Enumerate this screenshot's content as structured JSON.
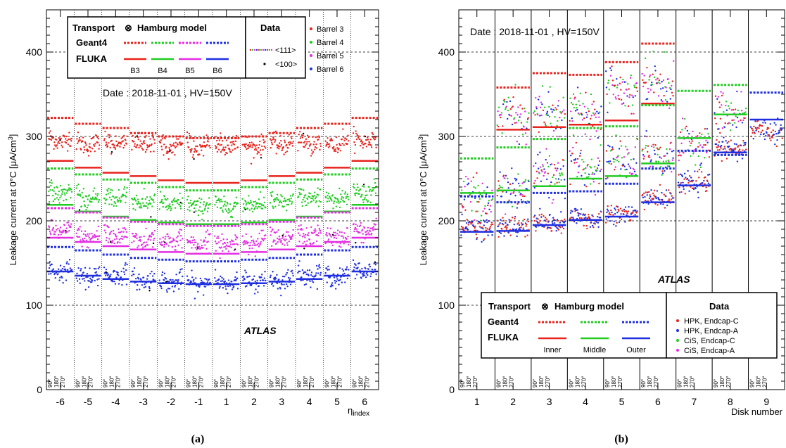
{
  "colors": {
    "barrel3": "#e8231d",
    "barrel4": "#22cc22",
    "barrel5": "#e32ee3",
    "barrel6": "#1f2fe0",
    "hpk_c": "#e8231d",
    "hpk_a": "#1f2fe0",
    "cis_c": "#22cc22",
    "cis_a": "#e32ee3"
  },
  "chart_data": [
    {
      "type": "scatter",
      "panel_label": "(a)",
      "ylabel": "Leakage current at 0°C [μA/cm³]",
      "ylabel_parts": [
        "Leakage current at 0°C [μA/cm",
        "3",
        "]"
      ],
      "xlabel": "η",
      "xlabel_sub": "index",
      "ylim": [
        0,
        450
      ],
      "yticks": [
        0,
        100,
        200,
        300,
        400
      ],
      "yticks_text": [
        "0",
        "100",
        "200",
        "300",
        "400"
      ],
      "grid": "dashed horizontal at 100, 200, 300, 400; dotted vertical bin separators",
      "categories": [
        "-6",
        "-5",
        "-4",
        "-3",
        "-2",
        "-1",
        "1",
        "2",
        "3",
        "4",
        "5",
        "6"
      ],
      "phi_labels": [
        "90°",
        "180°",
        "270°"
      ],
      "date_text": "Date : 2018-11-01 ,  HV=150V",
      "atlas_text": "ATLAS",
      "legend": {
        "title_transport": "Transport",
        "otimes": "⊗",
        "title_model": "Hamburg model",
        "row_geant4": "Geant4",
        "row_fluka": "FLUKA",
        "cols": [
          "B3",
          "B4",
          "B5",
          "B6"
        ],
        "data_title": "Data",
        "marker_111": "<111>",
        "marker_100": "<100>",
        "series_labels": [
          "Barrel 3",
          "Barrel 4",
          "Barrel 5",
          "Barrel 6"
        ]
      },
      "series": [
        {
          "name": "Barrel 3",
          "data_mean": [
            296,
            291,
            293,
            291,
            289,
            288,
            288,
            289,
            291,
            293,
            291,
            296
          ],
          "geant4": [
            322,
            315,
            310,
            304,
            300,
            298,
            298,
            300,
            304,
            310,
            315,
            322
          ],
          "fluka": [
            271,
            263,
            257,
            253,
            248,
            245,
            245,
            248,
            253,
            257,
            263,
            271
          ]
        },
        {
          "name": "Barrel 4",
          "data_mean": [
            234,
            226,
            228,
            223,
            220,
            218,
            218,
            220,
            223,
            228,
            226,
            234
          ],
          "geant4": [
            262,
            255,
            249,
            245,
            240,
            236,
            236,
            240,
            245,
            249,
            255,
            262
          ],
          "fluka": [
            219,
            211,
            205,
            201,
            198,
            196,
            196,
            198,
            201,
            205,
            211,
            219
          ]
        },
        {
          "name": "Barrel 5",
          "data_mean": [
            188,
            181,
            183,
            178,
            176,
            174,
            174,
            176,
            178,
            183,
            181,
            188
          ],
          "geant4": [
            215,
            210,
            204,
            199,
            196,
            194,
            194,
            196,
            199,
            204,
            210,
            215
          ],
          "fluka": [
            180,
            175,
            170,
            166,
            163,
            161,
            161,
            163,
            166,
            170,
            175,
            180
          ]
        },
        {
          "name": "Barrel 6",
          "data_mean": [
            141,
            134,
            136,
            130,
            128,
            126,
            126,
            128,
            130,
            136,
            134,
            141
          ],
          "geant4": [
            169,
            165,
            160,
            156,
            154,
            152,
            152,
            154,
            156,
            160,
            165,
            169
          ],
          "fluka": [
            140,
            135,
            131,
            128,
            126,
            125,
            125,
            126,
            128,
            131,
            135,
            140
          ]
        }
      ]
    },
    {
      "type": "scatter",
      "panel_label": "(b)",
      "ylabel": "Leakage current at 0°C [μA/cm³]",
      "ylabel_parts": [
        "Leakage current at 0°C [μA/cm",
        "3",
        "]"
      ],
      "xlabel": "Disk number",
      "ylim": [
        0,
        450
      ],
      "yticks": [
        0,
        100,
        200,
        300,
        400
      ],
      "yticks_text": [
        "0",
        "100",
        "200",
        "300",
        "400"
      ],
      "grid": "dashed horizontal at 100, 200, 300, 400; solid vertical disk separators",
      "categories": [
        "1",
        "2",
        "3",
        "4",
        "5",
        "6",
        "7",
        "8",
        "9"
      ],
      "phi_labels": [
        "90°",
        "180°",
        "270°"
      ],
      "date_text": "Date : 2018-11-01 ,  HV=150V",
      "atlas_text": "ATLAS",
      "legend": {
        "title_transport": "Transport",
        "otimes": "⊗",
        "title_model": "Hamburg model",
        "row_geant4": "Geant4",
        "row_fluka": "FLUKA",
        "cols": [
          "Inner",
          "Middle",
          "Outer"
        ],
        "data_title": "Data",
        "series_labels": [
          "HPK,  Endcap-C",
          "HPK,  Endcap-A",
          "CiS,    Endcap-C",
          "CiS,    Endcap-A"
        ]
      },
      "models": {
        "inner_geant4": [
          null,
          358,
          375,
          373,
          388,
          410,
          null,
          null,
          null
        ],
        "middle_geant4": [
          274,
          287,
          297,
          310,
          312,
          337,
          354,
          361,
          null
        ],
        "outer_geant4": [
          229,
          222,
          233,
          235,
          244,
          262,
          283,
          278,
          352
        ],
        "inner_fluka": [
          null,
          308,
          311,
          314,
          319,
          339,
          null,
          null,
          null
        ],
        "middle_fluka": [
          233,
          236,
          241,
          250,
          253,
          268,
          298,
          326,
          null
        ],
        "outer_fluka": [
          187,
          188,
          195,
          201,
          205,
          222,
          242,
          281,
          320
        ]
      },
      "data_bands": {
        "inner": [
          null,
          325,
          327,
          332,
          358,
          365,
          null,
          null,
          null
        ],
        "middle": [
          225,
          238,
          255,
          263,
          272,
          278,
          292,
          325,
          null
        ],
        "outer": [
          192,
          193,
          197,
          203,
          208,
          227,
          245,
          285,
          308
        ]
      }
    }
  ]
}
